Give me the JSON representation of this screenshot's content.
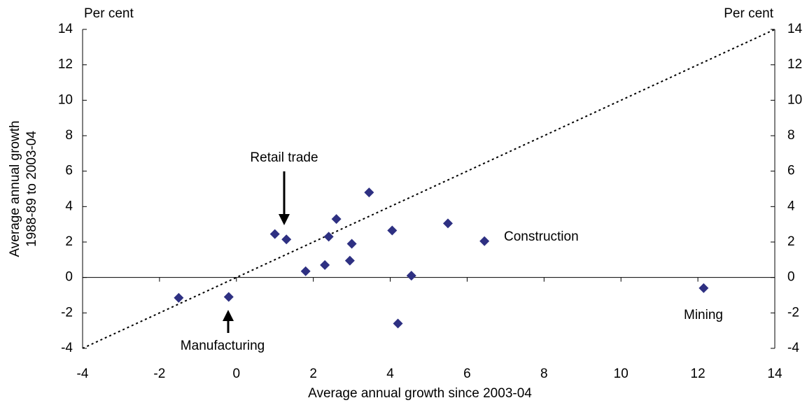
{
  "chart_data": {
    "type": "scatter",
    "x_label": "Average annual growth since 2003-04",
    "y_label": [
      "Average annual growth",
      "1988-89 to 2003-04"
    ],
    "y_unit_label": "Per cent",
    "y2_unit_label": "Per cent",
    "annotations": [
      "Retail trade",
      "Manufacturing",
      "Construction",
      "Mining"
    ],
    "color": "#2e3082",
    "series": [
      {
        "x": [
          -1.5,
          -0.2,
          1.0,
          1.3,
          1.8,
          2.3,
          2.4,
          2.6,
          3.0,
          2.95,
          3.45,
          4.05,
          4.2,
          4.55,
          5.5,
          6.45,
          12.15
        ],
        "values": [
          -1.15,
          -1.1,
          2.45,
          2.15,
          0.35,
          0.7,
          2.3,
          3.3,
          1.9,
          0.95,
          4.8,
          2.65,
          -2.6,
          0.1,
          3.05,
          2.05,
          -0.6
        ]
      }
    ],
    "xlim": [
      -4,
      14
    ],
    "xticks": [
      -4,
      -2,
      0,
      2,
      4,
      6,
      8,
      10,
      12,
      14
    ],
    "ylim": [
      -4,
      14
    ],
    "yticks": [
      -4,
      -2,
      0,
      2,
      4,
      6,
      8,
      10,
      12,
      14
    ],
    "y2lim": [
      -4,
      14
    ],
    "y2ticks": [
      -4,
      -2,
      0,
      2,
      4,
      6,
      8,
      10,
      12,
      14
    ]
  }
}
